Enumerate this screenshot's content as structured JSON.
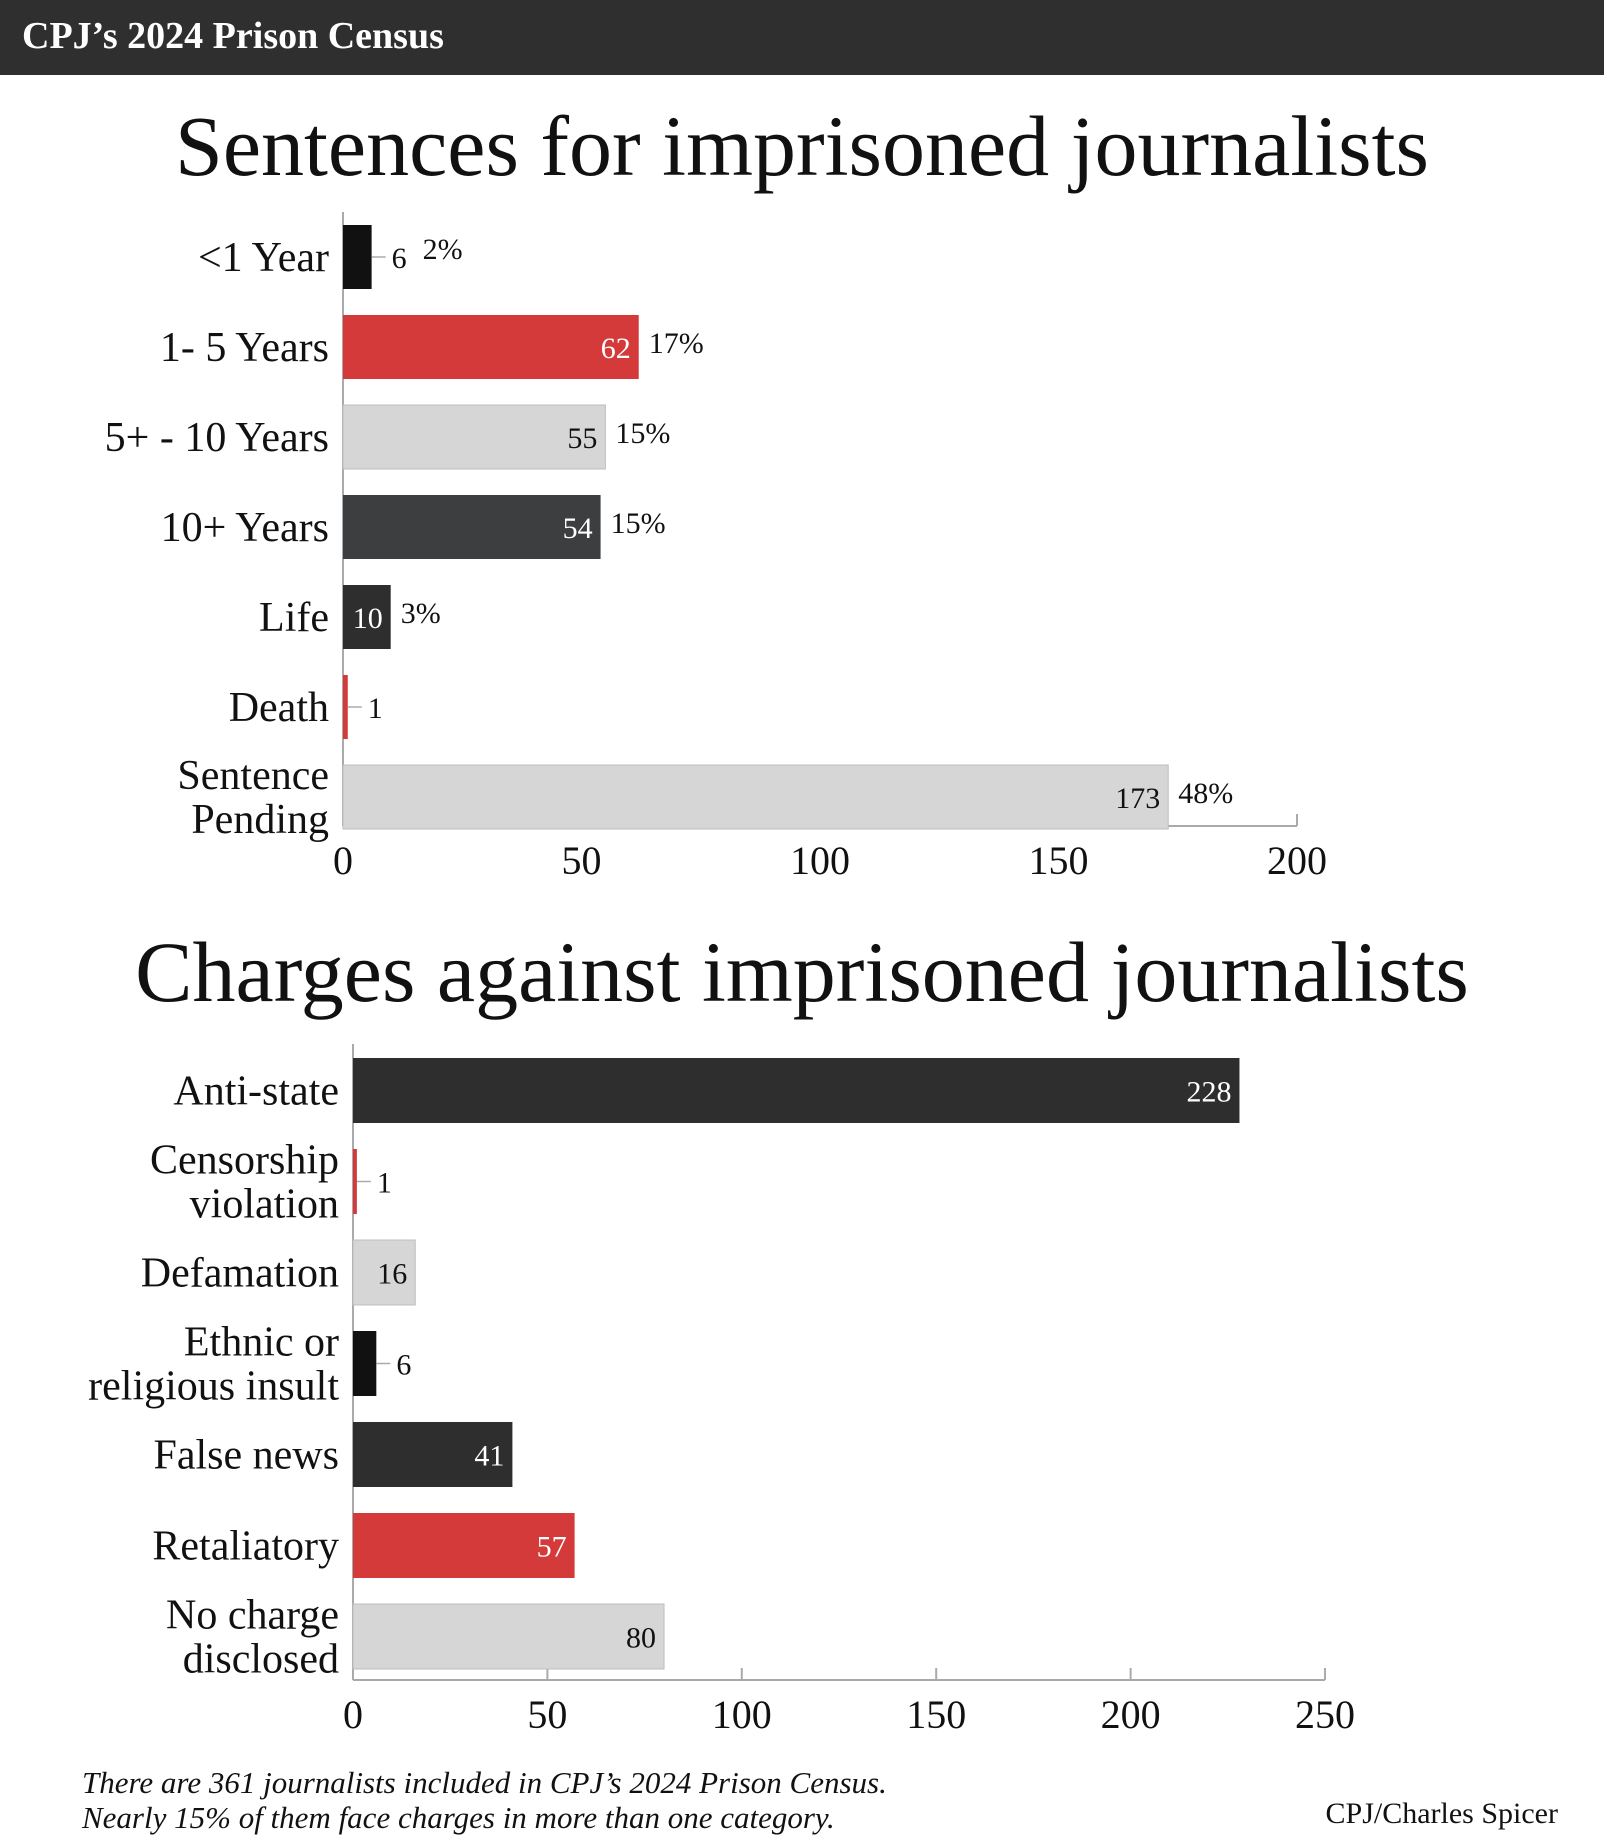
{
  "header": {
    "title": "CPJ’s 2024 Prison Census"
  },
  "colors": {
    "black": "#111111",
    "red": "#d43a3a",
    "light_gray": "#d6d6d6",
    "dark_gray": "#3d3e40",
    "charcoal": "#2e2e2e",
    "header_bg": "#2f2f2f"
  },
  "chart_data": [
    {
      "type": "bar",
      "orientation": "horizontal",
      "title": "Sentences for imprisoned journalists",
      "categories": [
        [
          "<1 Year"
        ],
        [
          "1- 5 Years"
        ],
        [
          "5+ - 10 Years"
        ],
        [
          "10+ Years"
        ],
        [
          "Life"
        ],
        [
          "Death"
        ],
        [
          "Sentence",
          "Pending"
        ]
      ],
      "values": [
        6,
        62,
        55,
        54,
        10,
        1,
        173
      ],
      "percent_labels": [
        "2%",
        "17%",
        "15%",
        "15%",
        "3%",
        "",
        "48%"
      ],
      "bar_colors": [
        "black",
        "red",
        "light_gray",
        "dark_gray",
        "charcoal",
        "red",
        "light_gray"
      ],
      "xlim": [
        0,
        200
      ],
      "xticks": [
        0,
        50,
        100,
        150,
        200
      ],
      "grid": false
    },
    {
      "type": "bar",
      "orientation": "horizontal",
      "title": "Charges against imprisoned journalists",
      "categories": [
        [
          "Anti-state"
        ],
        [
          "Censorship",
          "violation"
        ],
        [
          "Defamation"
        ],
        [
          "Ethnic or",
          "religious insult"
        ],
        [
          "False news"
        ],
        [
          "Retaliatory"
        ],
        [
          "No charge",
          "disclosed"
        ]
      ],
      "values": [
        228,
        1,
        16,
        6,
        41,
        57,
        80
      ],
      "percent_labels": [
        "",
        "",
        "",
        "",
        "",
        "",
        ""
      ],
      "bar_colors": [
        "charcoal",
        "red",
        "light_gray",
        "black",
        "charcoal",
        "red",
        "light_gray"
      ],
      "xlim": [
        0,
        250
      ],
      "xticks": [
        0,
        50,
        100,
        150,
        200,
        250
      ],
      "grid": false
    }
  ],
  "footnote": {
    "line1": "There are 361 journalists included in CPJ’s 2024 Prison Census.",
    "line2": "Nearly 15% of them face charges in more than one category."
  },
  "credit": "CPJ/Charles Spicer"
}
